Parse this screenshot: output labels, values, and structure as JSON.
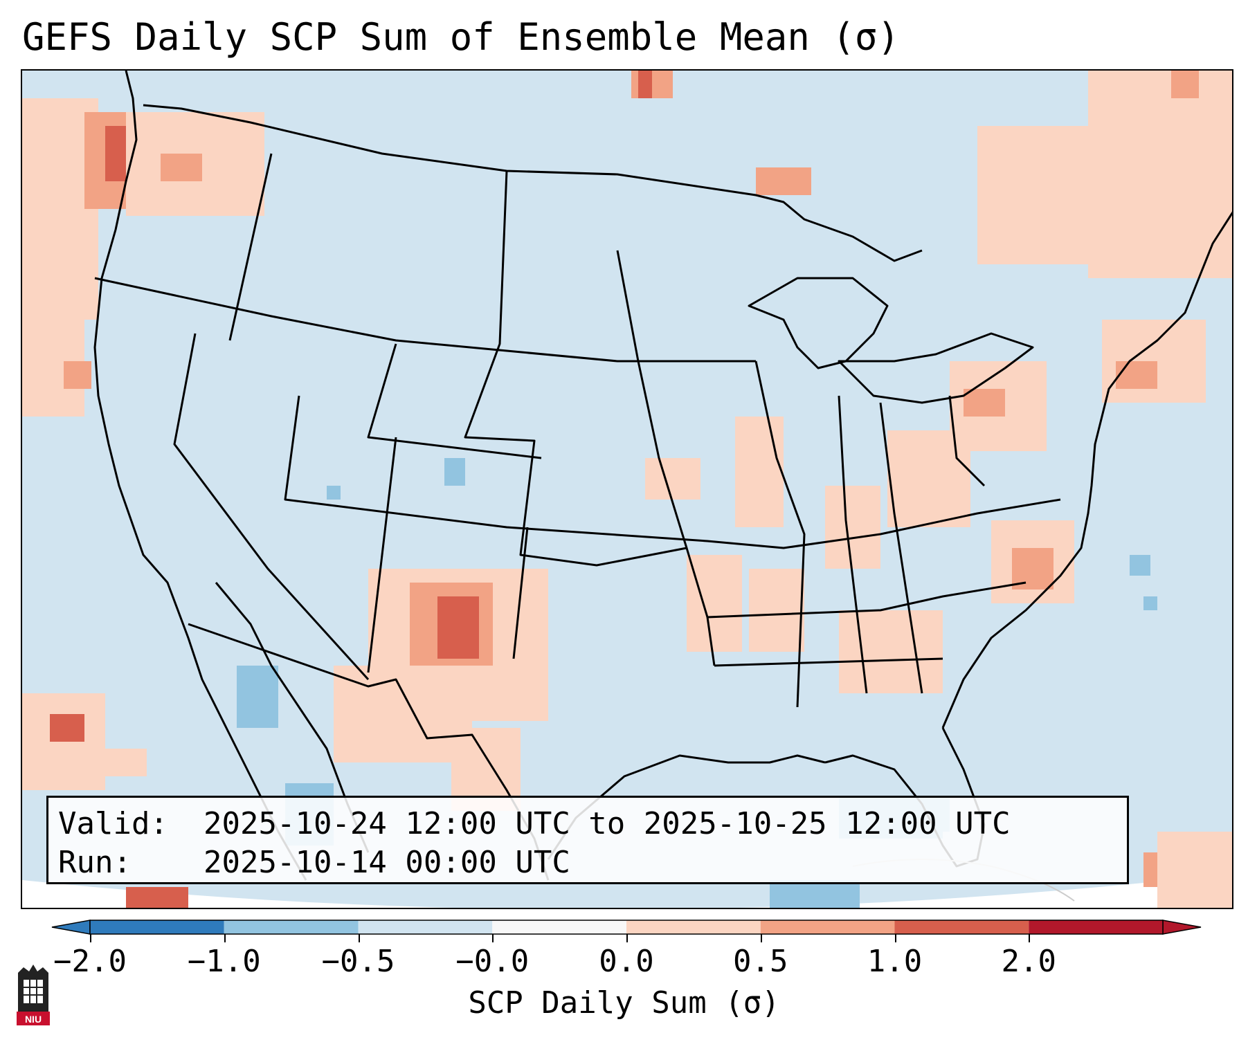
{
  "title": "GEFS Daily SCP Sum of Ensemble Mean (σ)",
  "info": {
    "valid_label": "Valid:",
    "valid_value": "2025-10-24 12:00 UTC to 2025-10-25 12:00 UTC",
    "run_label": "Run:",
    "run_value": "2025-10-14 00:00 UTC"
  },
  "colorbar": {
    "label": "SCP Daily Sum (σ)",
    "ticks": [
      "−2.0",
      "−1.0",
      "−0.5",
      "−0.0",
      "0.0",
      "0.5",
      "1.0",
      "2.0"
    ],
    "colors": [
      "#2f7bbc",
      "#92c4e0",
      "#d1e4f0",
      "#f8f8f8",
      "#fbd5c2",
      "#f2a385",
      "#d75f4d",
      "#b2182b"
    ]
  },
  "colors": {
    "background_field": "#d1e4f0",
    "light_warm": "#fbd5c2",
    "medium_warm": "#f2a385",
    "strong_warm": "#d75f4d",
    "light_cool": "#92c4e0"
  },
  "logo": {
    "text": "NIU"
  }
}
